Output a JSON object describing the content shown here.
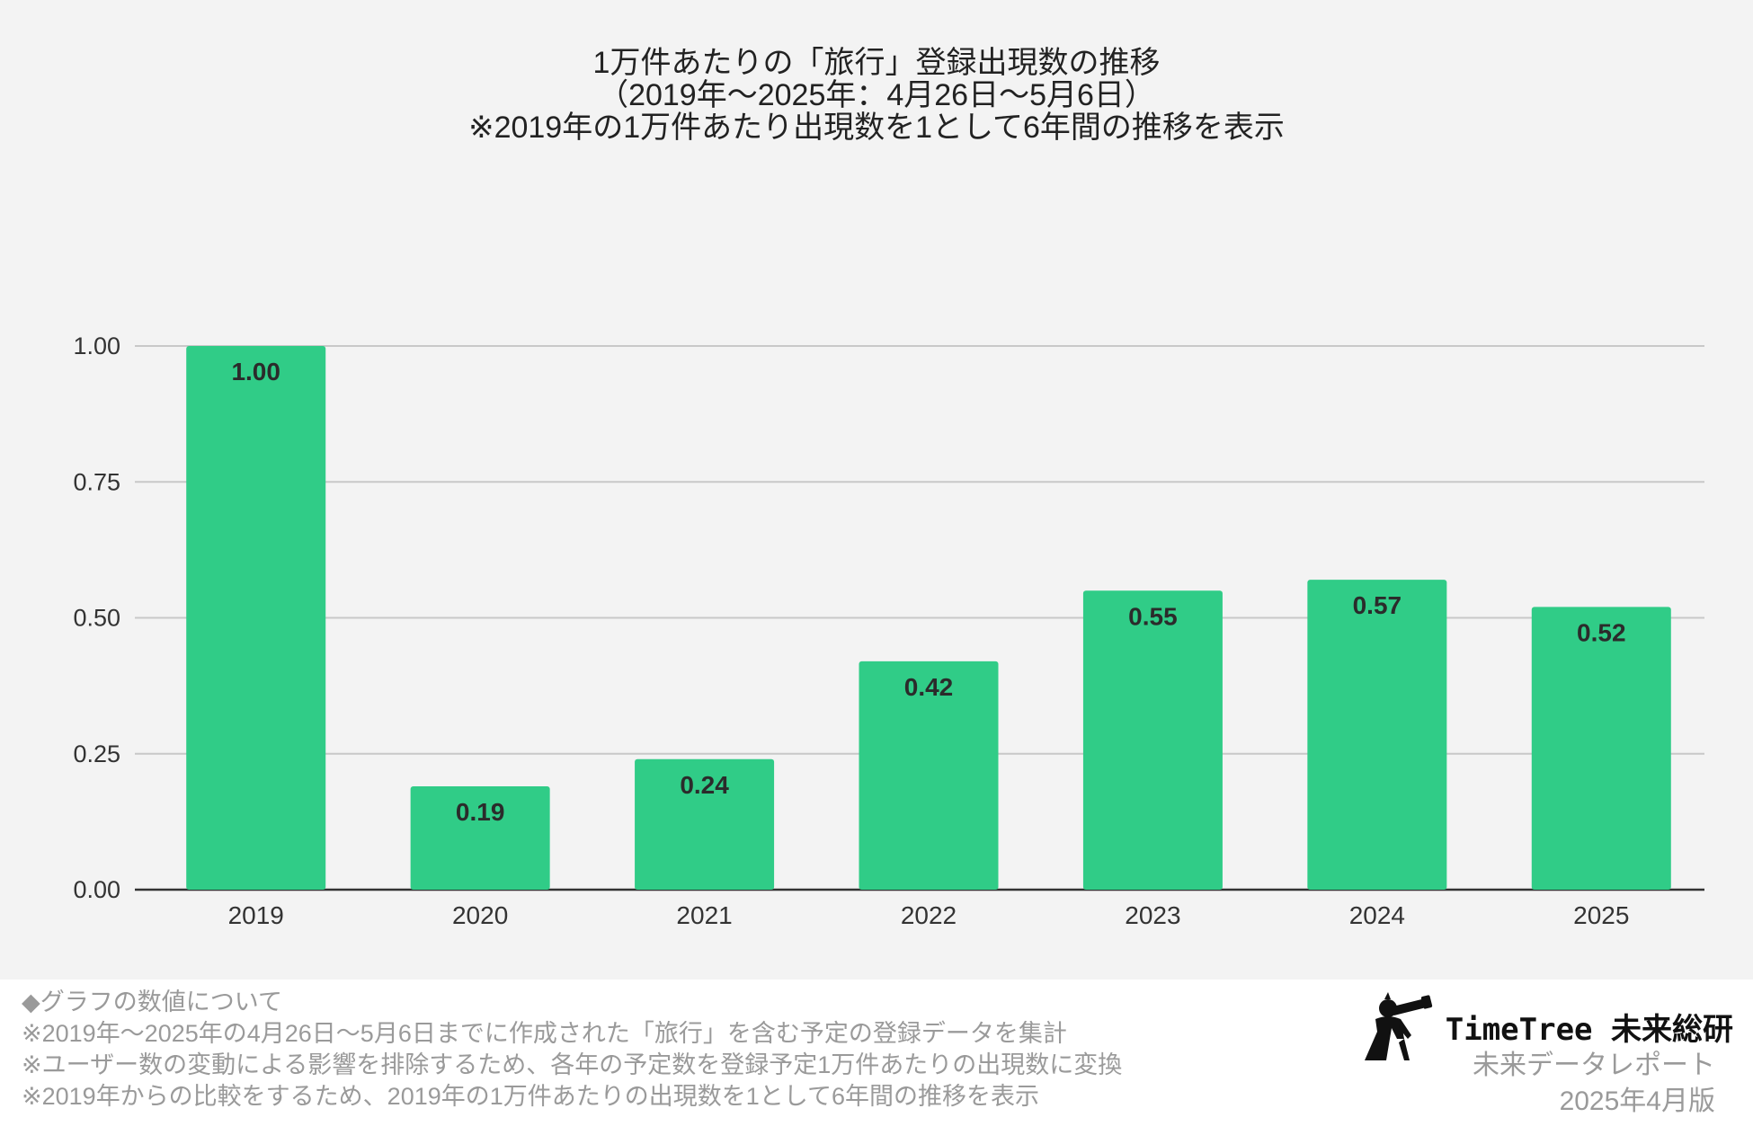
{
  "chart_data": {
    "type": "bar",
    "title_lines": [
      "1万件あたりの「旅行」登録出現数の推移",
      "（2019年〜2025年：4月26日〜5月6日）",
      "※2019年の1万件あたり出現数を1として6年間の推移を表示"
    ],
    "categories": [
      "2019",
      "2020",
      "2021",
      "2022",
      "2023",
      "2024",
      "2025"
    ],
    "values": [
      1.0,
      0.19,
      0.24,
      0.42,
      0.55,
      0.57,
      0.52
    ],
    "value_labels": [
      "1.00",
      "0.19",
      "0.24",
      "0.42",
      "0.55",
      "0.57",
      "0.52"
    ],
    "yticks": [
      "0.00",
      "0.25",
      "0.50",
      "0.75",
      "1.00"
    ],
    "ylim": [
      0,
      1
    ],
    "xlabel": "",
    "ylabel": "",
    "grid": true,
    "bar_color": "#30cc87"
  },
  "notes": {
    "heading": "◆グラフの数値について",
    "lines": [
      "※2019年〜2025年の4月26日〜5月6日までに作成された「旅行」を含む予定の登録データを集計",
      "※ユーザー数の変動による影響を排除するため、各年の予定数を登録予定1万件あたりの出現数に変換",
      "※2019年からの比較をするため、2019年の1万件あたりの出現数を1として6年間の推移を表示"
    ]
  },
  "brand": {
    "name": "TimeTree 未来総研",
    "subtitle": "未来データレポート",
    "edition": "2025年4月版",
    "logo_icon": "telescope-person-icon"
  }
}
